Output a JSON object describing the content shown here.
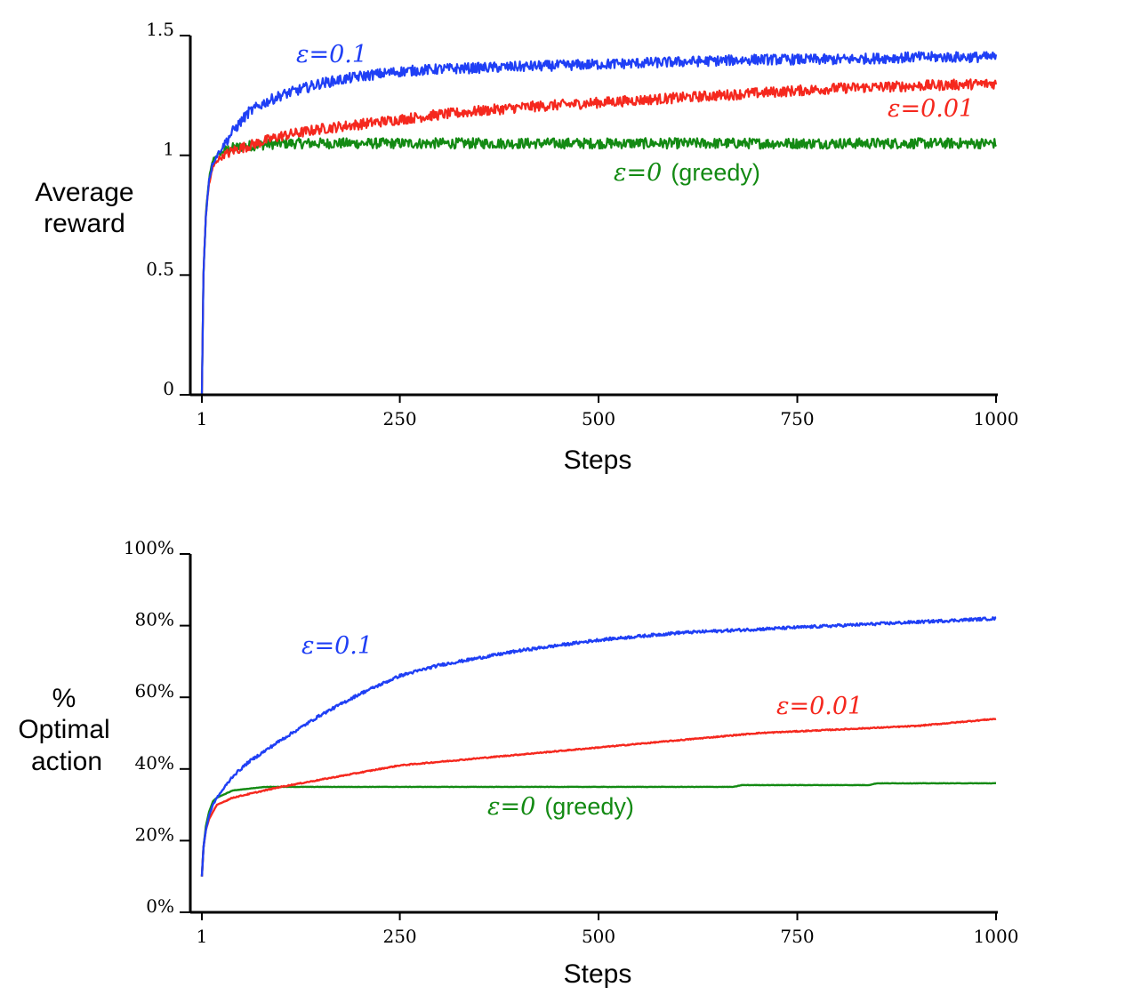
{
  "chart_data": [
    {
      "type": "line",
      "title": "",
      "xlabel": "Steps",
      "ylabel": [
        "Average",
        "reward"
      ],
      "xlim": [
        1,
        1000
      ],
      "ylim": [
        0,
        1.5
      ],
      "xticks": [
        1,
        250,
        500,
        750,
        1000
      ],
      "xtick_labels": [
        "1",
        "250",
        "500",
        "750",
        "1000"
      ],
      "yticks": [
        0,
        0.5,
        1,
        1.5
      ],
      "ytick_labels": [
        "0",
        "0.5",
        "1",
        "1.5"
      ],
      "grid": false,
      "series": [
        {
          "name": "ε = 0.1",
          "color": "#1f3ff5",
          "noise": 0.022,
          "x": [
            1,
            3,
            6,
            10,
            15,
            20,
            30,
            40,
            60,
            80,
            100,
            150,
            200,
            250,
            300,
            400,
            500,
            600,
            700,
            800,
            900,
            1000
          ],
          "y": [
            0.0,
            0.5,
            0.75,
            0.9,
            0.97,
            1.0,
            1.05,
            1.1,
            1.18,
            1.22,
            1.25,
            1.3,
            1.33,
            1.35,
            1.36,
            1.37,
            1.38,
            1.39,
            1.4,
            1.4,
            1.41,
            1.41
          ]
        },
        {
          "name": "ε = 0.01",
          "color": "#f5281e",
          "noise": 0.022,
          "x": [
            1,
            3,
            6,
            10,
            15,
            20,
            30,
            40,
            60,
            80,
            100,
            150,
            200,
            250,
            300,
            400,
            500,
            600,
            700,
            800,
            900,
            1000
          ],
          "y": [
            0.0,
            0.5,
            0.75,
            0.88,
            0.95,
            0.98,
            1.0,
            1.02,
            1.04,
            1.06,
            1.08,
            1.11,
            1.13,
            1.15,
            1.17,
            1.2,
            1.22,
            1.24,
            1.26,
            1.28,
            1.29,
            1.3
          ]
        },
        {
          "name": "ε = 0 (greedy)",
          "color": "#138a13",
          "noise": 0.022,
          "x": [
            1,
            3,
            6,
            10,
            15,
            20,
            30,
            40,
            60,
            100,
            200,
            400,
            600,
            800,
            1000
          ],
          "y": [
            0.0,
            0.5,
            0.75,
            0.9,
            0.98,
            1.0,
            1.02,
            1.03,
            1.04,
            1.05,
            1.05,
            1.05,
            1.05,
            1.05,
            1.05
          ]
        }
      ],
      "annotations": [
        {
          "text_eps": "ε",
          "text_value": "=0.1",
          "text_word": "",
          "color": "#1f3ff5"
        },
        {
          "text_eps": "ε",
          "text_value": "=0.01",
          "text_word": "",
          "color": "#f5281e"
        },
        {
          "text_eps": "ε",
          "text_value": "=0",
          "text_word": "(greedy)",
          "color": "#138a13"
        }
      ]
    },
    {
      "type": "line",
      "title": "",
      "xlabel": "Steps",
      "ylabel": [
        "%",
        "Optimal",
        "action"
      ],
      "xlim": [
        1,
        1000
      ],
      "ylim": [
        0,
        100
      ],
      "xticks": [
        1,
        250,
        500,
        750,
        1000
      ],
      "xtick_labels": [
        "1",
        "250",
        "500",
        "750",
        "1000"
      ],
      "yticks": [
        0,
        20,
        40,
        60,
        80,
        100
      ],
      "ytick_labels": [
        "0%",
        "20%",
        "40%",
        "60%",
        "80%",
        "100%"
      ],
      "grid": false,
      "series": [
        {
          "name": "ε = 0.1",
          "color": "#1f3ff5",
          "noise": 0.4,
          "x": [
            1,
            3,
            6,
            10,
            15,
            20,
            30,
            40,
            60,
            80,
            100,
            150,
            200,
            250,
            300,
            400,
            500,
            600,
            700,
            800,
            900,
            1000
          ],
          "y": [
            10,
            18,
            23,
            27,
            30,
            32,
            35,
            38,
            42,
            45,
            48,
            55,
            61,
            66,
            69,
            73,
            76,
            78,
            79,
            80,
            81,
            82
          ]
        },
        {
          "name": "ε = 0.01",
          "color": "#f5281e",
          "noise": 0.15,
          "x": [
            1,
            3,
            6,
            10,
            15,
            20,
            30,
            40,
            60,
            80,
            100,
            150,
            200,
            250,
            300,
            400,
            500,
            600,
            700,
            800,
            900,
            1000
          ],
          "y": [
            10,
            18,
            23,
            26,
            28,
            30,
            31,
            32,
            33,
            34,
            35,
            37,
            39,
            41,
            42,
            44,
            46,
            48,
            50,
            51,
            52,
            54
          ]
        },
        {
          "name": "ε = 0 (greedy)",
          "color": "#138a13",
          "noise": 0.05,
          "x": [
            1,
            3,
            6,
            10,
            15,
            20,
            30,
            40,
            60,
            80,
            100,
            200,
            400,
            600,
            670,
            680,
            840,
            850,
            1000
          ],
          "y": [
            10,
            18,
            24,
            28,
            31,
            32,
            33,
            34,
            34.5,
            35,
            35,
            35,
            35,
            35,
            35,
            35.5,
            35.5,
            36,
            36
          ]
        }
      ],
      "annotations": [
        {
          "text_eps": "ε",
          "text_value": "=0.1",
          "text_word": "",
          "color": "#1f3ff5"
        },
        {
          "text_eps": "ε",
          "text_value": "=0.01",
          "text_word": "",
          "color": "#f5281e"
        },
        {
          "text_eps": "ε",
          "text_value": "=0",
          "text_word": "(greedy)",
          "color": "#138a13"
        }
      ]
    }
  ]
}
